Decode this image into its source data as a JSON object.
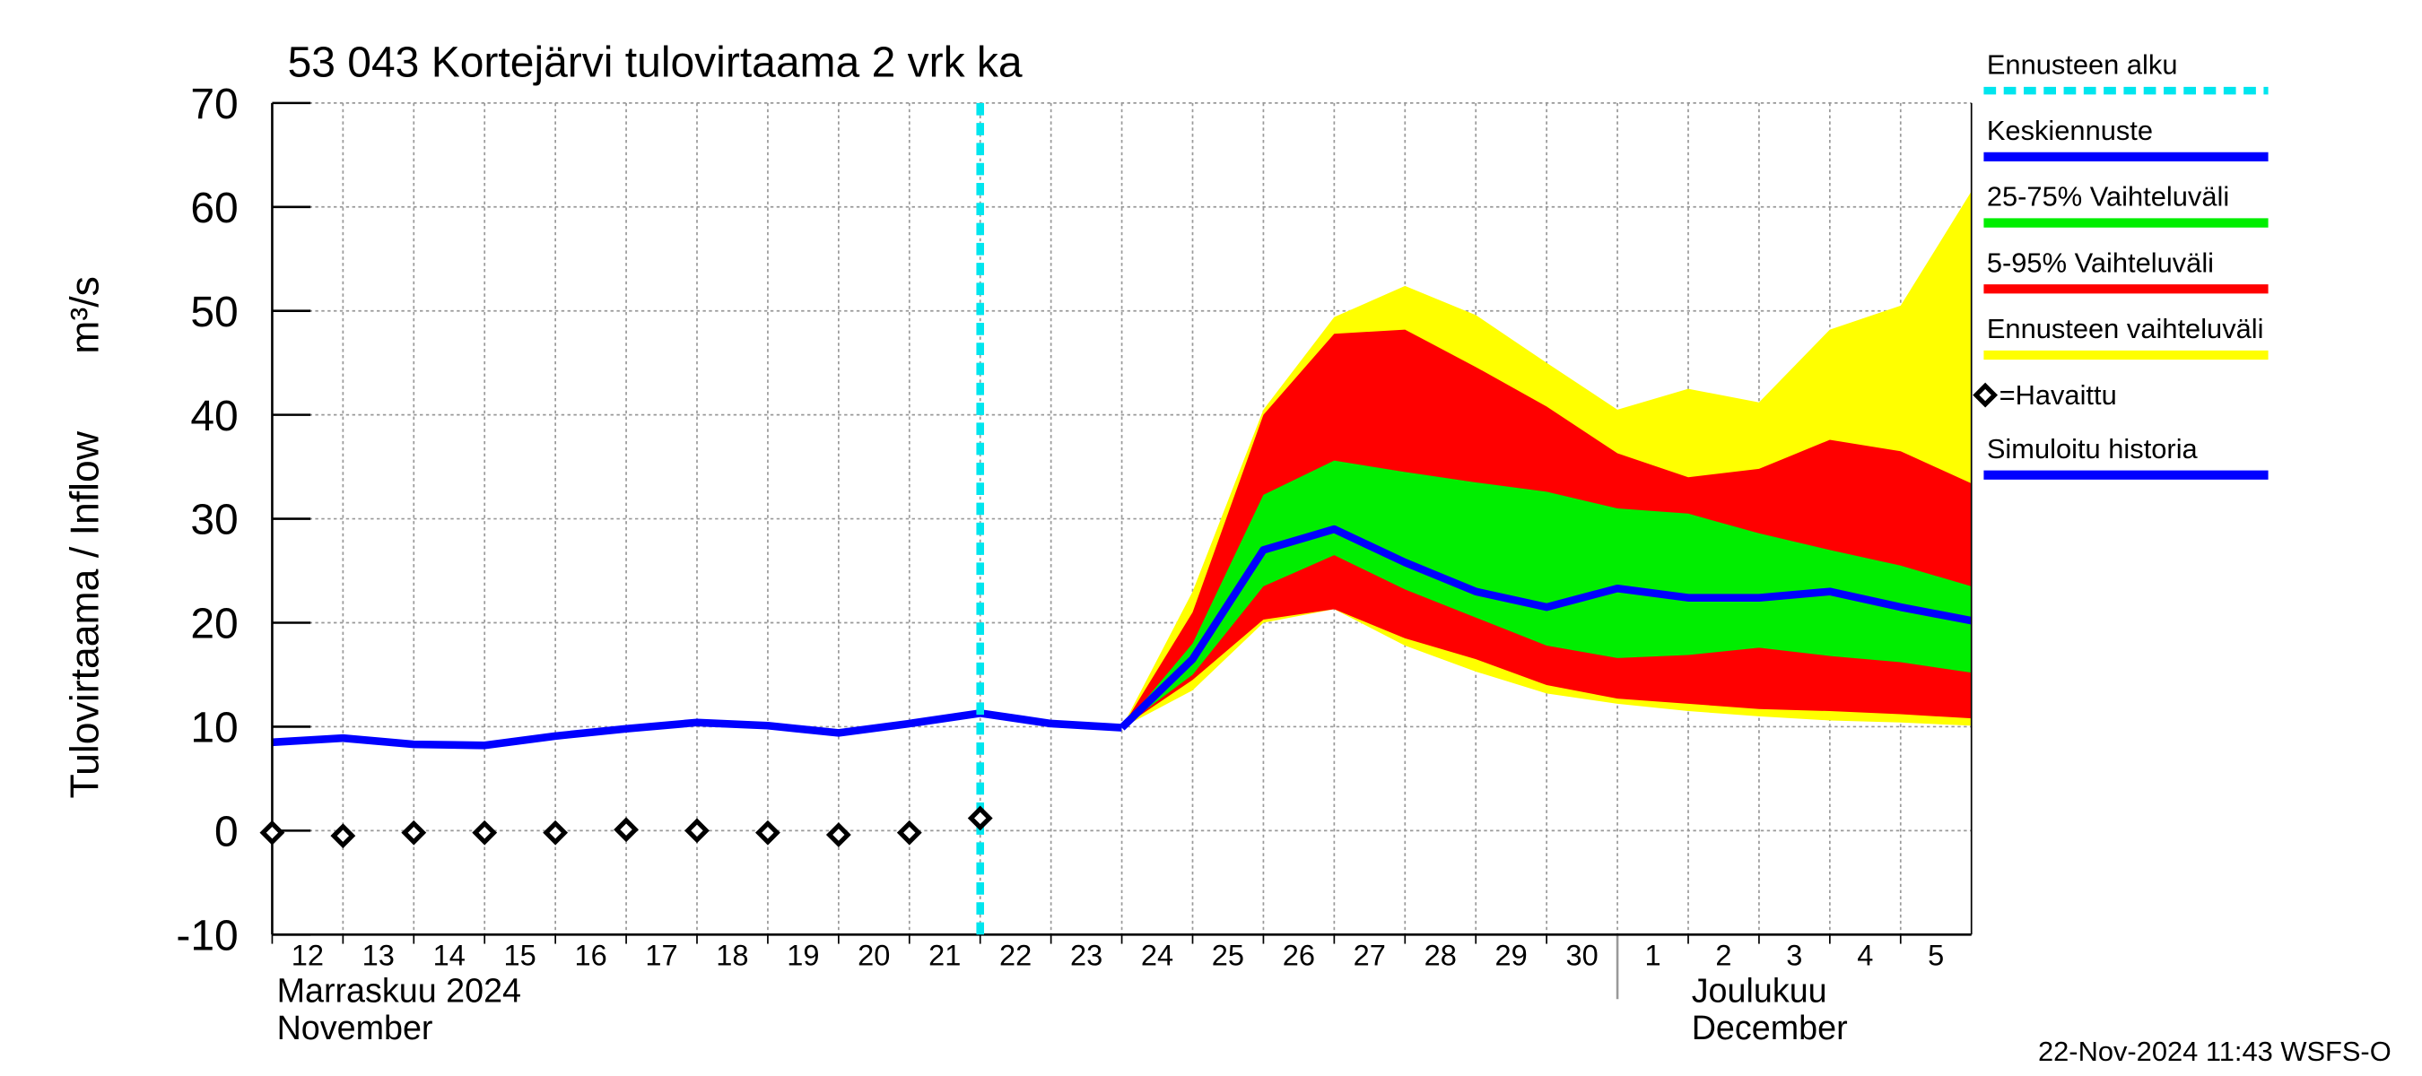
{
  "chart_data": {
    "type": "line",
    "title": "53 043 Kortejärvi tulovirtaama 2 vrk ka",
    "ylabel": "Tulovirtaama / Inflow",
    "yunit": "m³/s",
    "month_labels": [
      "Marraskuu 2024",
      "November",
      "Joulukuu",
      "December"
    ],
    "footer": "22-Nov-2024 11:43 WSFS-O",
    "xlim": [
      0,
      24
    ],
    "xticks": [
      {
        "value": 0,
        "label": "12"
      },
      {
        "value": 1,
        "label": "13"
      },
      {
        "value": 2,
        "label": "14"
      },
      {
        "value": 3,
        "label": "15"
      },
      {
        "value": 4,
        "label": "16"
      },
      {
        "value": 5,
        "label": "17"
      },
      {
        "value": 6,
        "label": "18"
      },
      {
        "value": 7,
        "label": "19"
      },
      {
        "value": 8,
        "label": "20"
      },
      {
        "value": 9,
        "label": "21"
      },
      {
        "value": 10,
        "label": "22"
      },
      {
        "value": 11,
        "label": "23"
      },
      {
        "value": 12,
        "label": "24"
      },
      {
        "value": 13,
        "label": "25"
      },
      {
        "value": 14,
        "label": "26"
      },
      {
        "value": 15,
        "label": "27"
      },
      {
        "value": 16,
        "label": "28"
      },
      {
        "value": 17,
        "label": "29"
      },
      {
        "value": 18,
        "label": "30"
      },
      {
        "value": 19,
        "label": "1"
      },
      {
        "value": 20,
        "label": "2"
      },
      {
        "value": 21,
        "label": "3"
      },
      {
        "value": 22,
        "label": "4"
      },
      {
        "value": 23,
        "label": "5"
      }
    ],
    "ylim": [
      -10,
      70
    ],
    "yticks": [
      -10,
      0,
      10,
      20,
      30,
      40,
      50,
      60,
      70
    ],
    "grid": true,
    "forecast_start": {
      "name": "Ennusteen alku",
      "color": "#00e5ee",
      "x": 10
    },
    "bands": [
      {
        "name": "Ennusteen vaihteluväli",
        "color": "#ffff00",
        "x": [
          12,
          13,
          14,
          15,
          16,
          17,
          18,
          19,
          20,
          21,
          22,
          23,
          24
        ],
        "lower": [
          9.9,
          13.5,
          20,
          21.3,
          17.8,
          15.3,
          13.2,
          12.2,
          11.5,
          11,
          10.6,
          10.4,
          10.1
        ],
        "upper": [
          9.9,
          23,
          40.5,
          49.4,
          52.4,
          49.6,
          45,
          40.5,
          42.5,
          41.2,
          48.2,
          50.5,
          61.5
        ]
      },
      {
        "name": "5-95% Vaihteluväli",
        "color": "#ff0000",
        "x": [
          12,
          13,
          14,
          15,
          16,
          17,
          18,
          19,
          20,
          21,
          22,
          23,
          24
        ],
        "lower": [
          9.9,
          14.5,
          20.3,
          21.3,
          18.5,
          16.5,
          14,
          12.7,
          12.2,
          11.7,
          11.5,
          11.2,
          10.8
        ],
        "upper": [
          9.9,
          21,
          40,
          47.8,
          48.2,
          44.6,
          40.8,
          36.3,
          34,
          34.8,
          37.6,
          36.5,
          33.4
        ]
      },
      {
        "name": "25-75% Vaihteluväli",
        "color": "#00ee00",
        "x": [
          12,
          13,
          14,
          15,
          16,
          17,
          18,
          19,
          20,
          21,
          22,
          23,
          24
        ],
        "lower": [
          9.9,
          15,
          23.5,
          26.5,
          23.2,
          20.5,
          17.8,
          16.6,
          16.9,
          17.6,
          16.8,
          16.2,
          15.2
        ],
        "upper": [
          9.9,
          18,
          32.3,
          35.6,
          34.5,
          33.5,
          32.6,
          31,
          30.5,
          28.6,
          27,
          25.5,
          23.5
        ]
      }
    ],
    "series": [
      {
        "name": "Keskiennuste",
        "color": "#0000ff",
        "x": [
          12,
          13,
          14,
          15,
          16,
          17,
          18,
          19,
          20,
          21,
          22,
          23,
          24
        ],
        "values": [
          9.9,
          16.5,
          27,
          29,
          25.8,
          23,
          21.5,
          23.3,
          22.4,
          22.4,
          23,
          21.5,
          20.2
        ]
      },
      {
        "name": "Simuloitu historia",
        "color": "#0000ff",
        "x": [
          0,
          1,
          2,
          3,
          4,
          5,
          6,
          7,
          8,
          9,
          10,
          11,
          12
        ],
        "values": [
          8.5,
          8.9,
          8.3,
          8.2,
          9.1,
          9.8,
          10.4,
          10.1,
          9.4,
          10.3,
          11.3,
          10.3,
          9.9
        ]
      }
    ],
    "observed": {
      "name": "=Havaittu",
      "color": "#000000",
      "x": [
        0,
        1,
        2,
        3,
        4,
        5,
        6,
        7,
        8,
        9,
        10
      ],
      "values": [
        -0.2,
        -0.5,
        -0.2,
        -0.2,
        -0.2,
        0.1,
        0.0,
        -0.2,
        -0.4,
        -0.2,
        1.2
      ]
    }
  }
}
